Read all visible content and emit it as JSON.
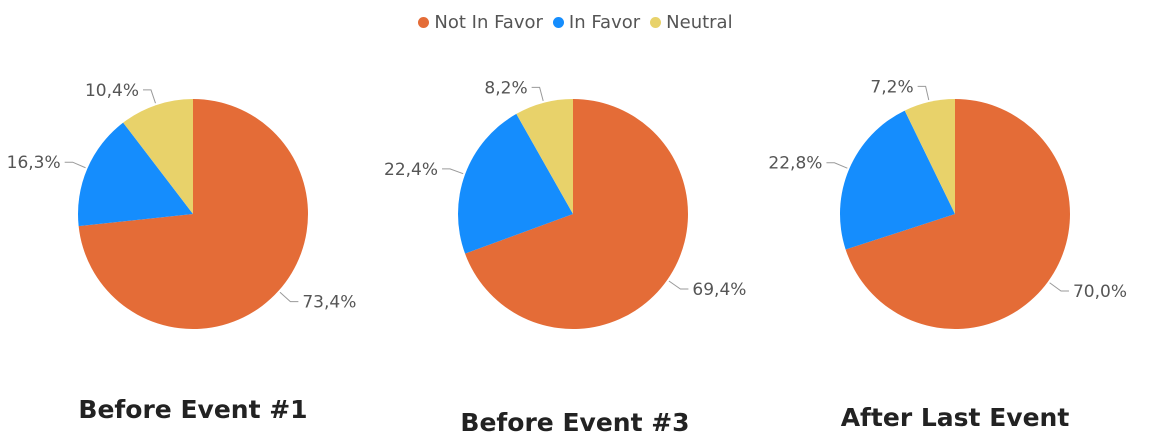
{
  "colors": {
    "Not In Favor": "#E46C37",
    "In Favor": "#158DFD",
    "Neutral": "#E8D26A"
  },
  "legend": [
    {
      "label": "Not In Favor",
      "color": "#E46C37"
    },
    {
      "label": "In Favor",
      "color": "#158DFD"
    },
    {
      "label": "Neutral",
      "color": "#E8D26A"
    }
  ],
  "chart_data": [
    {
      "type": "pie",
      "title": "Before Event #1",
      "slices": [
        {
          "name": "Not In Favor",
          "value": 73.4,
          "label": "73,4%"
        },
        {
          "name": "In Favor",
          "value": 16.3,
          "label": "16,3%"
        },
        {
          "name": "Neutral",
          "value": 10.4,
          "label": "10,4%"
        }
      ]
    },
    {
      "type": "pie",
      "title": "Before Event #3",
      "slices": [
        {
          "name": "Not In Favor",
          "value": 69.4,
          "label": "69,4%"
        },
        {
          "name": "In Favor",
          "value": 22.4,
          "label": "22,4%"
        },
        {
          "name": "Neutral",
          "value": 8.2,
          "label": "8,2%"
        }
      ]
    },
    {
      "type": "pie",
      "title": "After Last Event",
      "slices": [
        {
          "name": "Not In Favor",
          "value": 70.0,
          "label": "70,0%"
        },
        {
          "name": "In Favor",
          "value": 22.8,
          "label": "22,8%"
        },
        {
          "name": "Neutral",
          "value": 7.2,
          "label": "7,2%"
        }
      ]
    }
  ]
}
